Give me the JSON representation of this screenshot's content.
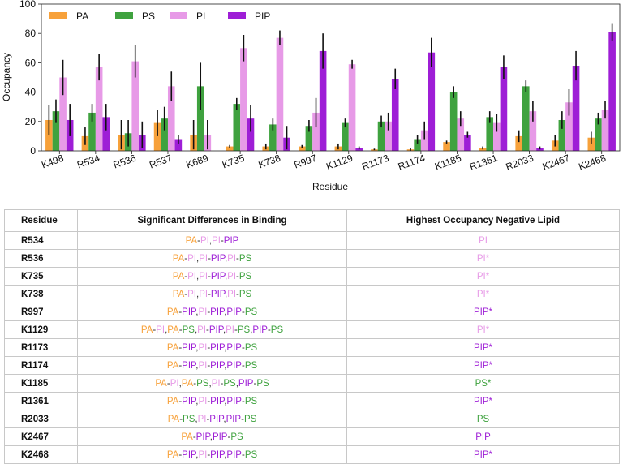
{
  "chart_data": {
    "type": "bar",
    "xlabel": "Residue",
    "ylabel": "Occupancy",
    "ylim": [
      0,
      100
    ],
    "yticks": [
      "0",
      "20",
      "40",
      "60",
      "80",
      "100"
    ],
    "legend_position": "top-left",
    "categories": [
      "K498",
      "R534",
      "R536",
      "R537",
      "K689",
      "K735",
      "K738",
      "R997",
      "K1129",
      "R1173",
      "R1174",
      "K1185",
      "R1361",
      "R2033",
      "K2467",
      "K2468"
    ],
    "series": [
      {
        "name": "PA",
        "color": "#F7A13A",
        "values": [
          21,
          10,
          11,
          19,
          11,
          3,
          3,
          3,
          3,
          1,
          1,
          6,
          2,
          10,
          7,
          9
        ],
        "errors": [
          10,
          6,
          10,
          9,
          10,
          1,
          2,
          1,
          2,
          0.5,
          1,
          1,
          1,
          4,
          4,
          4
        ]
      },
      {
        "name": "PS",
        "color": "#3FA23F",
        "values": [
          27,
          26,
          12,
          22,
          44,
          32,
          18,
          17,
          19,
          20,
          8,
          40,
          23,
          44,
          21,
          22
        ],
        "errors": [
          8,
          6,
          9,
          8,
          16,
          4,
          4,
          4,
          3,
          4,
          3,
          4,
          4,
          4,
          6,
          4
        ]
      },
      {
        "name": "PI",
        "color": "#E79AE7",
        "values": [
          50,
          57,
          61,
          44,
          11,
          70,
          77,
          26,
          59,
          20,
          14,
          22,
          19,
          27,
          33,
          28
        ],
        "errors": [
          12,
          9,
          11,
          10,
          10,
          9,
          5,
          10,
          3,
          6,
          6,
          5,
          6,
          7,
          9,
          6
        ]
      },
      {
        "name": "PIP",
        "color": "#9E1ED6",
        "values": [
          21,
          23,
          11,
          8,
          0,
          22,
          9,
          68,
          2,
          49,
          67,
          11,
          57,
          2,
          58,
          81
        ],
        "errors": [
          11,
          9,
          9,
          3,
          0,
          9,
          8,
          12,
          1,
          7,
          10,
          2,
          8,
          1,
          10,
          6
        ]
      }
    ]
  },
  "table": {
    "headers": {
      "residue": "Residue",
      "differences": "Significant Differences in Binding",
      "highest": "Highest Occupancy Negative Lipid"
    },
    "rows": [
      {
        "residue": "R534",
        "diffs": [
          [
            "PA",
            "PI"
          ],
          [
            "PI",
            "PIP"
          ]
        ],
        "highest": {
          "lipid": "PI",
          "text": "PI"
        }
      },
      {
        "residue": "R536",
        "diffs": [
          [
            "PA",
            "PI"
          ],
          [
            "PI",
            "PIP"
          ],
          [
            "PI",
            "PS"
          ]
        ],
        "highest": {
          "lipid": "PI",
          "text": "PI*"
        }
      },
      {
        "residue": "K735",
        "diffs": [
          [
            "PA",
            "PI"
          ],
          [
            "PI",
            "PIP"
          ],
          [
            "PI",
            "PS"
          ]
        ],
        "highest": {
          "lipid": "PI",
          "text": "PI*"
        }
      },
      {
        "residue": "K738",
        "diffs": [
          [
            "PA",
            "PI"
          ],
          [
            "PI",
            "PIP"
          ],
          [
            "PI",
            "PS"
          ]
        ],
        "highest": {
          "lipid": "PI",
          "text": "PI*"
        }
      },
      {
        "residue": "R997",
        "diffs": [
          [
            "PA",
            "PIP"
          ],
          [
            "PI",
            "PIP"
          ],
          [
            "PIP",
            "PS"
          ]
        ],
        "highest": {
          "lipid": "PIP",
          "text": "PIP*"
        }
      },
      {
        "residue": "K1129",
        "diffs": [
          [
            "PA",
            "PI"
          ],
          [
            "PA",
            "PS"
          ],
          [
            "PI",
            "PIP"
          ],
          [
            "PI",
            "PS"
          ],
          [
            "PIP",
            "PS"
          ]
        ],
        "highest": {
          "lipid": "PI",
          "text": "PI*"
        }
      },
      {
        "residue": "R1173",
        "diffs": [
          [
            "PA",
            "PIP"
          ],
          [
            "PI",
            "PIP"
          ],
          [
            "PIP",
            "PS"
          ]
        ],
        "highest": {
          "lipid": "PIP",
          "text": "PIP*"
        }
      },
      {
        "residue": "R1174",
        "diffs": [
          [
            "PA",
            "PIP"
          ],
          [
            "PI",
            "PIP"
          ],
          [
            "PIP",
            "PS"
          ]
        ],
        "highest": {
          "lipid": "PIP",
          "text": "PIP*"
        }
      },
      {
        "residue": "K1185",
        "diffs": [
          [
            "PA",
            "PI"
          ],
          [
            "PA",
            "PS"
          ],
          [
            "PI",
            "PS"
          ],
          [
            "PIP",
            "PS"
          ]
        ],
        "highest": {
          "lipid": "PS",
          "text": "PS*"
        }
      },
      {
        "residue": "R1361",
        "diffs": [
          [
            "PA",
            "PIP"
          ],
          [
            "PI",
            "PIP"
          ],
          [
            "PIP",
            "PS"
          ]
        ],
        "highest": {
          "lipid": "PIP",
          "text": "PIP*"
        }
      },
      {
        "residue": "R2033",
        "diffs": [
          [
            "PA",
            "PS"
          ],
          [
            "PI",
            "PIP"
          ],
          [
            "PIP",
            "PS"
          ]
        ],
        "highest": {
          "lipid": "PS",
          "text": "PS"
        }
      },
      {
        "residue": "K2467",
        "diffs": [
          [
            "PA",
            "PIP"
          ],
          [
            "PIP",
            "PS"
          ]
        ],
        "highest": {
          "lipid": "PIP",
          "text": "PIP"
        }
      },
      {
        "residue": "K2468",
        "diffs": [
          [
            "PA",
            "PIP"
          ],
          [
            "PI",
            "PIP"
          ],
          [
            "PIP",
            "PS"
          ]
        ],
        "highest": {
          "lipid": "PIP",
          "text": "PIP*"
        }
      }
    ]
  }
}
